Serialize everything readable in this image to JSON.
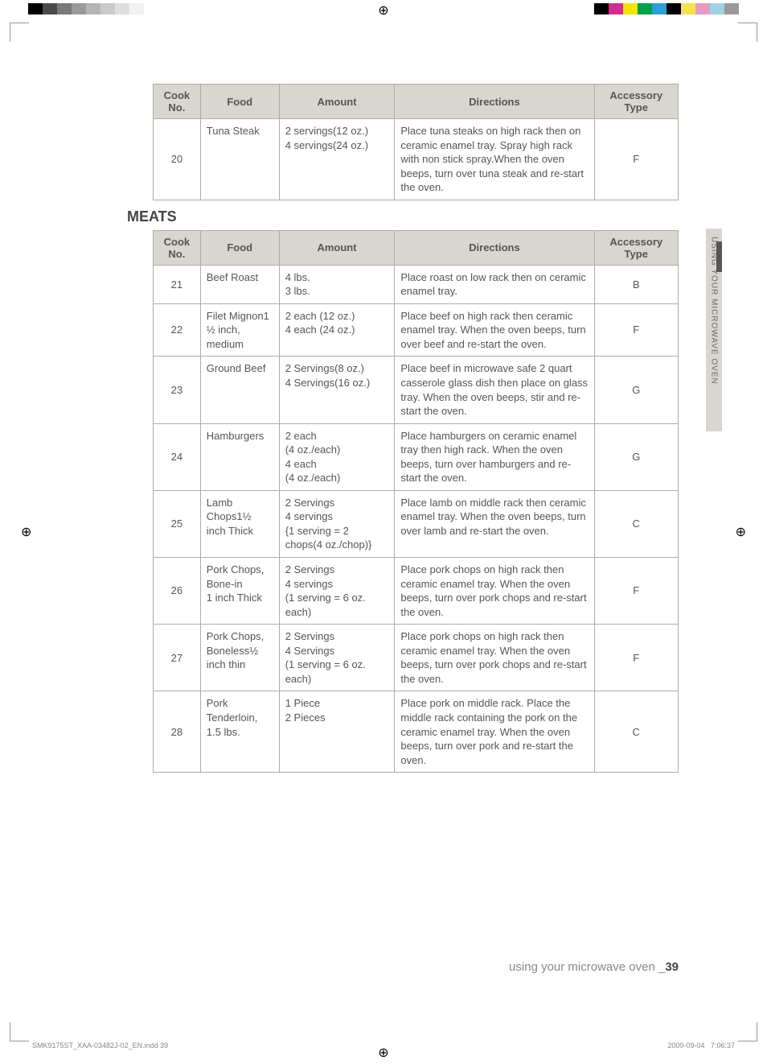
{
  "regMark": "⊕",
  "colorBarsLeft": [
    "#000000",
    "#4a4a4a",
    "#7a7a7a",
    "#9a9a9a",
    "#b5b5b5",
    "#cacaca",
    "#dedede",
    "#f1f1f1",
    "#ffffff"
  ],
  "colorBarsRight": [
    "#000000",
    "#d62b8e",
    "#f4e500",
    "#00a14b",
    "#2aa0d8",
    "#000000",
    "#f5e34a",
    "#e79bc0",
    "#9ed3e4",
    "#9a9a9a"
  ],
  "sideTab": "USING YOUR MICROWAVE OVEN",
  "headers": {
    "cookNo": "Cook No.",
    "food": "Food",
    "amount": "Amount",
    "directions": "Directions",
    "accessory": "Accessory Type"
  },
  "table1": [
    {
      "no": "20",
      "food": "Tuna Steak",
      "amount": "2 servings(12 oz.)\n4 servings(24 oz.)",
      "directions": "Place tuna steaks on high rack then on ceramic enamel tray. Spray high rack with non stick spray.When the oven beeps, turn over tuna steak and re-start the oven.",
      "acc": "F"
    }
  ],
  "sectionTitle": "MEATS",
  "table2": [
    {
      "no": "21",
      "food": "Beef Roast",
      "amount": "4 lbs.\n3 lbs.",
      "directions": "Place roast on low rack then on ceramic enamel tray.",
      "acc": "B"
    },
    {
      "no": "22",
      "food": "Filet Mignon1 ½ inch, medium",
      "amount": "2 each (12 oz.)\n4 each (24 oz.)",
      "directions": "Place beef on high rack then ceramic enamel tray. When the oven beeps, turn over beef and re-start the oven.",
      "acc": "F"
    },
    {
      "no": "23",
      "food": "Ground Beef",
      "amount": "2 Servings(8 oz.)\n4 Servings(16 oz.)",
      "directions": "Place beef in microwave safe 2 quart casserole glass dish then place on glass tray. When the oven beeps, stir and re-start the oven.",
      "acc": "G"
    },
    {
      "no": "24",
      "food": "Hamburgers",
      "amount": "2 each\n(4 oz./each)\n4 each\n(4 oz./each)",
      "directions": "Place hamburgers on ceramic enamel tray then high rack. When the oven beeps, turn over hamburgers and re-start the oven.\n ",
      "acc": "G"
    },
    {
      "no": "25",
      "food": "Lamb Chops1½ inch Thick",
      "amount": "2 Servings\n4 servings\n{1 serving = 2 chops(4 oz./chop)}",
      "directions": "Place lamb on middle rack then ceramic enamel tray.  When the oven beeps, turn over lamb and re-start the oven.",
      "acc": "C"
    },
    {
      "no": "26",
      "food": "Pork Chops, Bone-in\n1 inch Thick",
      "amount": "2 Servings\n4 servings\n(1 serving = 6 oz. each)",
      "directions": "Place pork chops on high rack then ceramic enamel tray.  When the oven beeps, turn over pork chops and re-start the oven.",
      "acc": "F"
    },
    {
      "no": "27",
      "food": "Pork Chops, Boneless½ inch thin",
      "amount": "2 Servings\n4 Servings\n(1 serving = 6 oz. each)",
      "directions": "Place pork chops on high rack then ceramic enamel tray. When the oven beeps, turn over pork chops and re-start the oven.",
      "acc": "F"
    },
    {
      "no": "28",
      "food": "Pork Tenderloin, 1.5 lbs.",
      "amount": "1 Piece\n2 Pieces",
      "directions": "Place pork on middle rack. Place the middle rack containing the pork on the ceramic enamel tray. When the oven beeps, turn over pork and re-start the oven.",
      "acc": "C"
    }
  ],
  "footer": {
    "text": "using your microwave oven _",
    "page": "39"
  },
  "slug": {
    "file": "SMK9175ST_XAA-03482J-02_EN.indd   39",
    "date": "2009-09-04",
    "time": "7:06:37"
  }
}
